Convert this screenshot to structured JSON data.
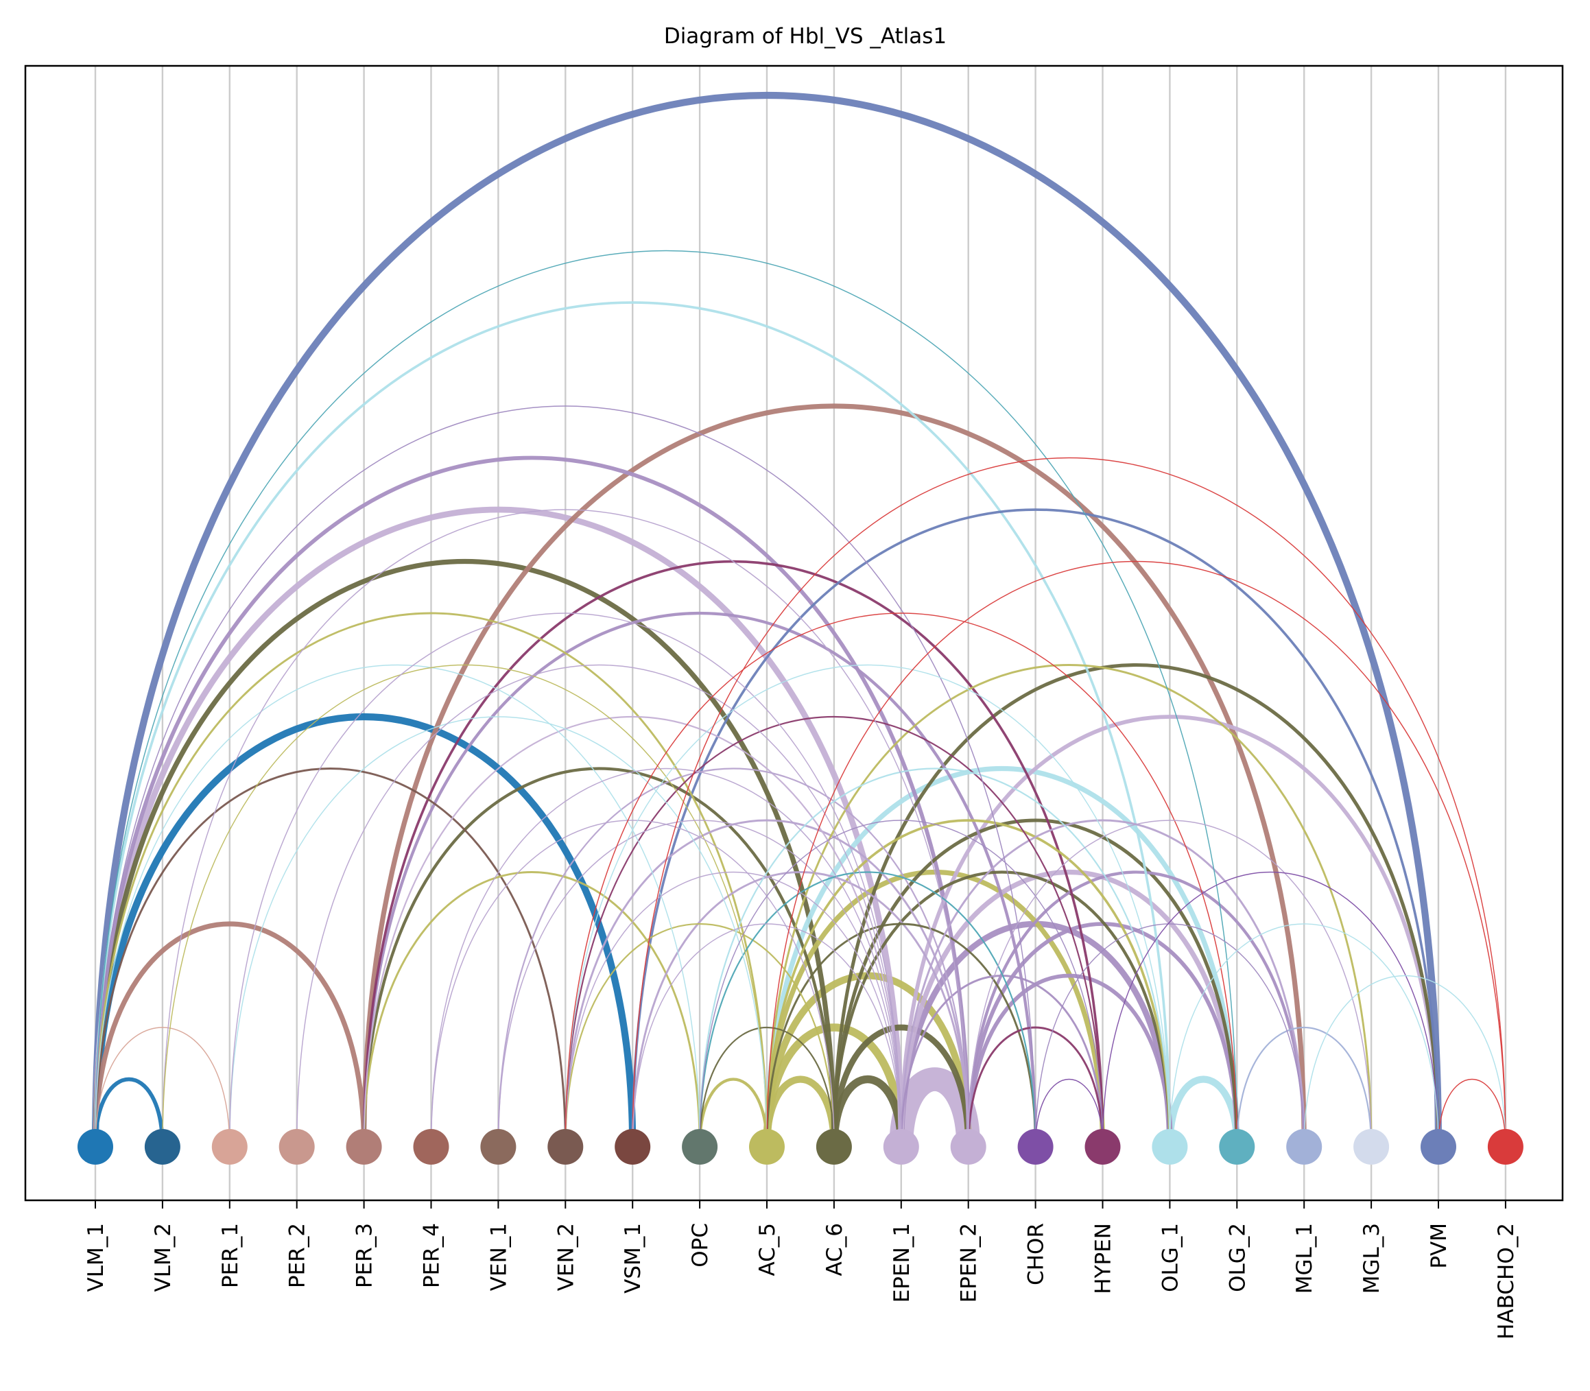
{
  "title": "Diagram of Hbl_VS _Atlas1",
  "chart_data": {
    "type": "arc-diagram",
    "title": "Diagram of Hbl_VS _Atlas1",
    "grid": true,
    "nodes": [
      {
        "label": "VLM_1",
        "color": "#1f77b4"
      },
      {
        "label": "VLM_2",
        "color": "#276490"
      },
      {
        "label": "PER_1",
        "color": "#d8a497"
      },
      {
        "label": "PER_2",
        "color": "#c9988e"
      },
      {
        "label": "PER_3",
        "color": "#b17e77"
      },
      {
        "label": "PER_4",
        "color": "#a0665c"
      },
      {
        "label": "VEN_1",
        "color": "#8b6a5d"
      },
      {
        "label": "VEN_2",
        "color": "#7a5a51"
      },
      {
        "label": "VSM_1",
        "color": "#7a4740"
      },
      {
        "label": "OPC",
        "color": "#62776d"
      },
      {
        "label": "AC_5",
        "color": "#bdbb5f"
      },
      {
        "label": "AC_6",
        "color": "#6b6b45"
      },
      {
        "label": "EPEN_1",
        "color": "#c4b0d5"
      },
      {
        "label": "EPEN_2",
        "color": "#c4b0d5"
      },
      {
        "label": "CHOR",
        "color": "#7e4fa6"
      },
      {
        "label": "HYPEN",
        "color": "#8a3a6c"
      },
      {
        "label": "OLG_1",
        "color": "#aee0ea"
      },
      {
        "label": "OLG_2",
        "color": "#5fb0c0"
      },
      {
        "label": "MGL_1",
        "color": "#a2b1d8"
      },
      {
        "label": "MGL_3",
        "color": "#d3dbec"
      },
      {
        "label": "PVM",
        "color": "#6c7fb8"
      },
      {
        "label": "HABCHO_2",
        "color": "#d93b3b"
      }
    ],
    "edges": [
      {
        "source": 0,
        "target": 20,
        "weight": 7,
        "color": "#6c7fb8"
      },
      {
        "source": 0,
        "target": 17,
        "weight": 1,
        "color": "#4ea7b5"
      },
      {
        "source": 0,
        "target": 16,
        "weight": 2.5,
        "color": "#aee0ea"
      },
      {
        "source": 0,
        "target": 14,
        "weight": 1,
        "color": "#9f89c0"
      },
      {
        "source": 0,
        "target": 13,
        "weight": 4,
        "color": "#a88fc2"
      },
      {
        "source": 0,
        "target": 12,
        "weight": 6,
        "color": "#c4b0d5"
      },
      {
        "source": 0,
        "target": 11,
        "weight": 5,
        "color": "#6b6b45"
      },
      {
        "source": 0,
        "target": 10,
        "weight": 2,
        "color": "#bdbb5f"
      },
      {
        "source": 0,
        "target": 9,
        "weight": 1,
        "color": "#aee0ea"
      },
      {
        "source": 0,
        "target": 8,
        "weight": 7,
        "color": "#1f77b4"
      },
      {
        "source": 0,
        "target": 7,
        "weight": 2,
        "color": "#7a5a51"
      },
      {
        "source": 0,
        "target": 4,
        "weight": 5,
        "color": "#b17e77"
      },
      {
        "source": 0,
        "target": 2,
        "weight": 1,
        "color": "#d8a497"
      },
      {
        "source": 0,
        "target": 1,
        "weight": 4,
        "color": "#1f77b4"
      },
      {
        "source": 1,
        "target": 13,
        "weight": 1,
        "color": "#b7a3cf"
      },
      {
        "source": 1,
        "target": 10,
        "weight": 1,
        "color": "#bdbb5f"
      },
      {
        "source": 2,
        "target": 10,
        "weight": 1,
        "color": "#aee0ea"
      },
      {
        "source": 2,
        "target": 12,
        "weight": 1,
        "color": "#b7a3cf"
      },
      {
        "source": 3,
        "target": 12,
        "weight": 1,
        "color": "#b7a3cf"
      },
      {
        "source": 4,
        "target": 18,
        "weight": 5,
        "color": "#b17e77"
      },
      {
        "source": 4,
        "target": 14,
        "weight": 3,
        "color": "#a88fc2"
      },
      {
        "source": 4,
        "target": 12,
        "weight": 1.5,
        "color": "#c4b0d5"
      },
      {
        "source": 4,
        "target": 11,
        "weight": 3,
        "color": "#6b6b45"
      },
      {
        "source": 4,
        "target": 9,
        "weight": 2,
        "color": "#bdbb5f"
      },
      {
        "source": 4,
        "target": 15,
        "weight": 2.5,
        "color": "#8a3a6c"
      },
      {
        "source": 5,
        "target": 12,
        "weight": 1,
        "color": "#b7a3cf"
      },
      {
        "source": 5,
        "target": 11,
        "weight": 1,
        "color": "#b7a3cf"
      },
      {
        "source": 6,
        "target": 13,
        "weight": 1.5,
        "color": "#b7a3cf"
      },
      {
        "source": 6,
        "target": 12,
        "weight": 1,
        "color": "#b7a3cf"
      },
      {
        "source": 7,
        "target": 16,
        "weight": 1,
        "color": "#aee0ea"
      },
      {
        "source": 7,
        "target": 15,
        "weight": 1.5,
        "color": "#8a3a6c"
      },
      {
        "source": 7,
        "target": 13,
        "weight": 2,
        "color": "#b7a3cf"
      },
      {
        "source": 7,
        "target": 12,
        "weight": 1,
        "color": "#b7a3cf"
      },
      {
        "source": 7,
        "target": 11,
        "weight": 1.5,
        "color": "#bdbb5f"
      },
      {
        "source": 7,
        "target": 17,
        "weight": 1,
        "color": "#d93b3b"
      },
      {
        "source": 8,
        "target": 21,
        "weight": 1,
        "color": "#d93b3b"
      },
      {
        "source": 8,
        "target": 20,
        "weight": 2.5,
        "color": "#6c7fb8"
      },
      {
        "source": 8,
        "target": 13,
        "weight": 2,
        "color": "#b7a3cf"
      },
      {
        "source": 8,
        "target": 12,
        "weight": 1,
        "color": "#b7a3cf"
      },
      {
        "source": 9,
        "target": 16,
        "weight": 1.5,
        "color": "#aee0ea"
      },
      {
        "source": 9,
        "target": 15,
        "weight": 1,
        "color": "#9f89c0"
      },
      {
        "source": 9,
        "target": 14,
        "weight": 1.5,
        "color": "#4ea7b5"
      },
      {
        "source": 9,
        "target": 11,
        "weight": 1.5,
        "color": "#6b6b45"
      },
      {
        "source": 9,
        "target": 10,
        "weight": 3,
        "color": "#bdbb5f"
      },
      {
        "source": 10,
        "target": 21,
        "weight": 1,
        "color": "#d93b3b"
      },
      {
        "source": 10,
        "target": 19,
        "weight": 2,
        "color": "#bdbb5f"
      },
      {
        "source": 10,
        "target": 17,
        "weight": 5,
        "color": "#aee0ea"
      },
      {
        "source": 10,
        "target": 16,
        "weight": 2.5,
        "color": "#bdbb5f"
      },
      {
        "source": 10,
        "target": 15,
        "weight": 5,
        "color": "#bdbb5f"
      },
      {
        "source": 10,
        "target": 14,
        "weight": 2,
        "color": "#6b6b45"
      },
      {
        "source": 10,
        "target": 13,
        "weight": 7,
        "color": "#bdbb5f"
      },
      {
        "source": 10,
        "target": 12,
        "weight": 8,
        "color": "#bdbb5f"
      },
      {
        "source": 10,
        "target": 11,
        "weight": 7,
        "color": "#bdbb5f"
      },
      {
        "source": 11,
        "target": 20,
        "weight": 3.5,
        "color": "#6b6b45"
      },
      {
        "source": 11,
        "target": 17,
        "weight": 3.5,
        "color": "#6b6b45"
      },
      {
        "source": 11,
        "target": 16,
        "weight": 3,
        "color": "#6b6b45"
      },
      {
        "source": 11,
        "target": 13,
        "weight": 6,
        "color": "#6b6b45"
      },
      {
        "source": 11,
        "target": 12,
        "weight": 8,
        "color": "#6b6b45"
      },
      {
        "source": 12,
        "target": 20,
        "weight": 4,
        "color": "#c4b0d5"
      },
      {
        "source": 12,
        "target": 18,
        "weight": 2,
        "color": "#b7a3cf"
      },
      {
        "source": 12,
        "target": 17,
        "weight": 5,
        "color": "#c4b0d5"
      },
      {
        "source": 12,
        "target": 16,
        "weight": 6,
        "color": "#a88fc2"
      },
      {
        "source": 12,
        "target": 15,
        "weight": 2,
        "color": "#a88fc2"
      },
      {
        "source": 12,
        "target": 13,
        "weight": 24,
        "color": "#c4b0d5"
      },
      {
        "source": 13,
        "target": 19,
        "weight": 1,
        "color": "#b7a3cf"
      },
      {
        "source": 13,
        "target": 18,
        "weight": 3,
        "color": "#a88fc2"
      },
      {
        "source": 13,
        "target": 17,
        "weight": 4,
        "color": "#a88fc2"
      },
      {
        "source": 13,
        "target": 16,
        "weight": 4,
        "color": "#a88fc2"
      },
      {
        "source": 13,
        "target": 15,
        "weight": 2,
        "color": "#8a3a6c"
      },
      {
        "source": 14,
        "target": 18,
        "weight": 1,
        "color": "#9f89c0"
      },
      {
        "source": 14,
        "target": 15,
        "weight": 1,
        "color": "#7e4fa6"
      },
      {
        "source": 15,
        "target": 20,
        "weight": 1,
        "color": "#7e4fa6"
      },
      {
        "source": 16,
        "target": 20,
        "weight": 1,
        "color": "#aee0ea"
      },
      {
        "source": 16,
        "target": 17,
        "weight": 7,
        "color": "#aee0ea"
      },
      {
        "source": 17,
        "target": 19,
        "weight": 1.5,
        "color": "#a2b1d8"
      },
      {
        "source": 18,
        "target": 21,
        "weight": 1,
        "color": "#aee0ea"
      },
      {
        "source": 20,
        "target": 21,
        "weight": 1,
        "color": "#d93b3b"
      }
    ]
  }
}
